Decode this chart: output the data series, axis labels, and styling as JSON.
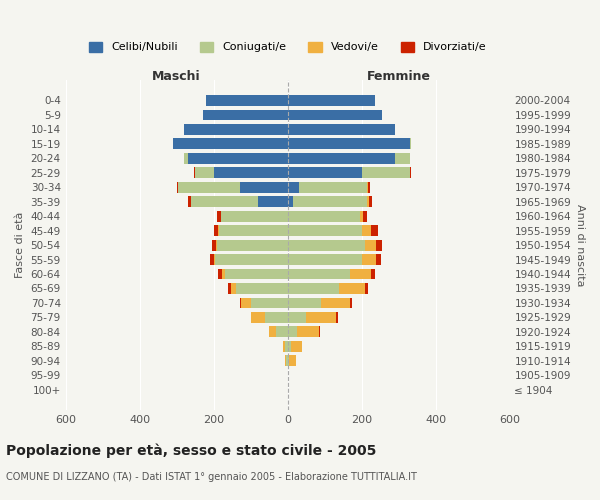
{
  "age_groups": [
    "100+",
    "95-99",
    "90-94",
    "85-89",
    "80-84",
    "75-79",
    "70-74",
    "65-69",
    "60-64",
    "55-59",
    "50-54",
    "45-49",
    "40-44",
    "35-39",
    "30-34",
    "25-29",
    "20-24",
    "15-19",
    "10-14",
    "5-9",
    "0-4"
  ],
  "birth_years": [
    "≤ 1904",
    "1905-1909",
    "1910-1914",
    "1915-1919",
    "1920-1924",
    "1925-1929",
    "1930-1934",
    "1935-1939",
    "1940-1944",
    "1945-1949",
    "1950-1954",
    "1955-1959",
    "1960-1964",
    "1965-1969",
    "1970-1974",
    "1975-1979",
    "1980-1984",
    "1985-1989",
    "1990-1994",
    "1995-1999",
    "2000-2004"
  ],
  "maschi": {
    "celibe": [
      0,
      0,
      0,
      0,
      0,
      0,
      0,
      0,
      0,
      0,
      0,
      0,
      0,
      80,
      130,
      200,
      270,
      310,
      280,
      230,
      220
    ],
    "coniugato": [
      0,
      0,
      5,
      8,
      30,
      60,
      100,
      140,
      170,
      195,
      190,
      185,
      180,
      180,
      165,
      50,
      10,
      0,
      0,
      0,
      0
    ],
    "vedovo": [
      0,
      0,
      2,
      5,
      20,
      40,
      25,
      12,
      8,
      5,
      3,
      2,
      0,
      0,
      0,
      0,
      0,
      0,
      0,
      0,
      0
    ],
    "divorziato": [
      0,
      0,
      0,
      0,
      0,
      0,
      5,
      8,
      10,
      10,
      12,
      12,
      12,
      10,
      5,
      2,
      0,
      0,
      0,
      0,
      0
    ]
  },
  "femmine": {
    "nubile": [
      0,
      0,
      0,
      0,
      0,
      0,
      0,
      0,
      0,
      0,
      0,
      0,
      0,
      15,
      30,
      200,
      290,
      330,
      290,
      255,
      235
    ],
    "coniugata": [
      0,
      0,
      3,
      8,
      25,
      50,
      90,
      140,
      170,
      200,
      210,
      200,
      195,
      200,
      185,
      130,
      40,
      5,
      0,
      0,
      0
    ],
    "vedova": [
      2,
      2,
      20,
      30,
      60,
      80,
      80,
      70,
      55,
      40,
      30,
      25,
      10,
      5,
      2,
      0,
      0,
      0,
      0,
      0,
      0
    ],
    "divorziata": [
      0,
      0,
      0,
      0,
      2,
      5,
      5,
      8,
      10,
      12,
      15,
      20,
      10,
      8,
      5,
      3,
      0,
      0,
      0,
      0,
      0
    ]
  },
  "colors": {
    "celibe": "#3a6ea5",
    "coniugato": "#b5c98e",
    "vedovo": "#f0b040",
    "divorziato": "#cc2200"
  },
  "xlim": 600,
  "title": "Popolazione per età, sesso e stato civile - 2005",
  "subtitle": "COMUNE DI LIZZANO (TA) - Dati ISTAT 1° gennaio 2005 - Elaborazione TUTTITALIA.IT",
  "ylabel_left": "Fasce di età",
  "ylabel_right": "Anni di nascita",
  "xlabel_left": "Maschi",
  "xlabel_right": "Femmine",
  "legend_labels": [
    "Celibi/Nubili",
    "Coniugati/e",
    "Vedovi/e",
    "Divorziati/e"
  ],
  "bg_color": "#f5f5f0"
}
